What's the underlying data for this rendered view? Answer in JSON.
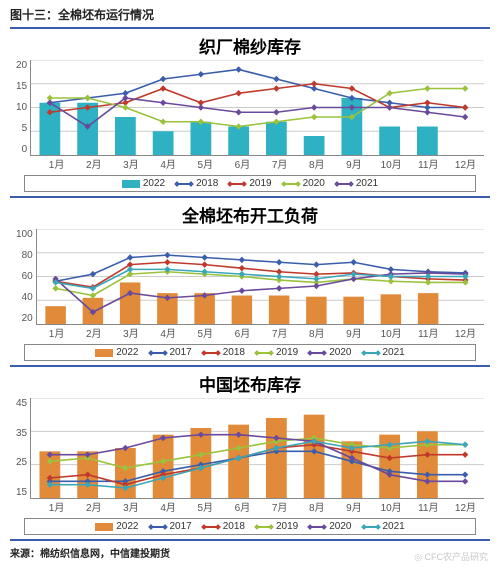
{
  "figure_label": "图十三：全棉坯布运行情况",
  "source": "来源：棉纺织信息网，中信建投期货",
  "watermark": "◎ CFC农产品研究",
  "months": [
    "1月",
    "2月",
    "3月",
    "4月",
    "5月",
    "6月",
    "7月",
    "8月",
    "9月",
    "10月",
    "11月",
    "12月"
  ],
  "palette": {
    "bar_2022_teal": "#2fb1c4",
    "bar_2022_orange": "#e08a3a",
    "blue": "#3a5eab",
    "red": "#c0392b",
    "green": "#9ac23c",
    "purple": "#6a4a9c",
    "cyan": "#3aa6b9",
    "grid": "#cccccc",
    "axis": "#888888"
  },
  "charts": [
    {
      "title": "织厂棉纱库存",
      "type": "bar+line",
      "height": 95,
      "ylim": [
        0,
        20
      ],
      "yticks": [
        0,
        5,
        10,
        15,
        20
      ],
      "bar": {
        "label": "2022",
        "color": "#2fb1c4",
        "width": 0.55,
        "values": [
          11,
          11,
          8,
          5,
          7,
          6,
          7,
          4,
          12,
          6,
          6,
          null
        ]
      },
      "lines": [
        {
          "label": "2018",
          "color": "#3a5eab",
          "values": [
            11,
            12,
            13,
            16,
            17,
            18,
            16,
            14,
            12,
            11,
            10,
            10
          ]
        },
        {
          "label": "2019",
          "color": "#c0392b",
          "values": [
            9,
            10,
            11,
            14,
            11,
            13,
            14,
            15,
            14,
            10,
            11,
            10
          ]
        },
        {
          "label": "2020",
          "color": "#9ac23c",
          "values": [
            12,
            12,
            10,
            7,
            7,
            6,
            7,
            8,
            8,
            13,
            14,
            14
          ]
        },
        {
          "label": "2021",
          "color": "#6a4a9c",
          "values": [
            11,
            6,
            12,
            11,
            10,
            9,
            9,
            10,
            10,
            10,
            9,
            8
          ]
        }
      ]
    },
    {
      "title": "全棉坯布开工负荷",
      "type": "bar+line",
      "height": 95,
      "ylim": [
        20,
        100
      ],
      "yticks": [
        20,
        40,
        60,
        80,
        100
      ],
      "bar": {
        "label": "2022",
        "color": "#e08a3a",
        "width": 0.55,
        "values": [
          35,
          42,
          55,
          46,
          46,
          44,
          44,
          43,
          43,
          45,
          46,
          null
        ]
      },
      "lines": [
        {
          "label": "2017",
          "color": "#3a5eab",
          "values": [
            56,
            62,
            76,
            78,
            76,
            74,
            72,
            70,
            72,
            66,
            64,
            63
          ]
        },
        {
          "label": "2018",
          "color": "#c0392b",
          "values": [
            56,
            51,
            70,
            72,
            70,
            67,
            64,
            62,
            63,
            60,
            58,
            57
          ]
        },
        {
          "label": "2019",
          "color": "#9ac23c",
          "values": [
            50,
            44,
            62,
            64,
            62,
            60,
            57,
            55,
            58,
            56,
            55,
            55
          ]
        },
        {
          "label": "2020",
          "color": "#6a4a9c",
          "values": [
            58,
            30,
            46,
            42,
            44,
            48,
            50,
            52,
            58,
            62,
            63,
            62
          ]
        },
        {
          "label": "2021",
          "color": "#3aa6b9",
          "values": [
            55,
            50,
            66,
            66,
            64,
            62,
            60,
            58,
            62,
            60,
            60,
            60
          ]
        }
      ]
    },
    {
      "title": "中国坯布库存",
      "type": "bar+line",
      "height": 100,
      "ylim": [
        15,
        45
      ],
      "yticks": [
        15,
        25,
        35,
        45
      ],
      "bar": {
        "label": "2022",
        "color": "#e08a3a",
        "width": 0.55,
        "values": [
          29,
          29,
          30,
          34,
          36,
          37,
          39,
          40,
          32,
          34,
          35,
          null
        ]
      },
      "lines": [
        {
          "label": "2017",
          "color": "#3a5eab",
          "values": [
            20,
            20,
            20,
            23,
            25,
            27,
            29,
            29,
            26,
            23,
            22,
            22
          ]
        },
        {
          "label": "2018",
          "color": "#c0392b",
          "values": [
            21,
            22,
            19,
            22,
            24,
            27,
            30,
            31,
            29,
            27,
            28,
            28
          ]
        },
        {
          "label": "2019",
          "color": "#9ac23c",
          "values": [
            26,
            27,
            24,
            26,
            28,
            30,
            32,
            33,
            31,
            30,
            31,
            31
          ]
        },
        {
          "label": "2020",
          "color": "#6a4a9c",
          "values": [
            28,
            28,
            30,
            33,
            34,
            34,
            33,
            32,
            27,
            22,
            20,
            20
          ]
        },
        {
          "label": "2021",
          "color": "#3aa6b9",
          "values": [
            19,
            19,
            18,
            21,
            24,
            27,
            30,
            32,
            30,
            31,
            32,
            31
          ]
        }
      ]
    }
  ]
}
